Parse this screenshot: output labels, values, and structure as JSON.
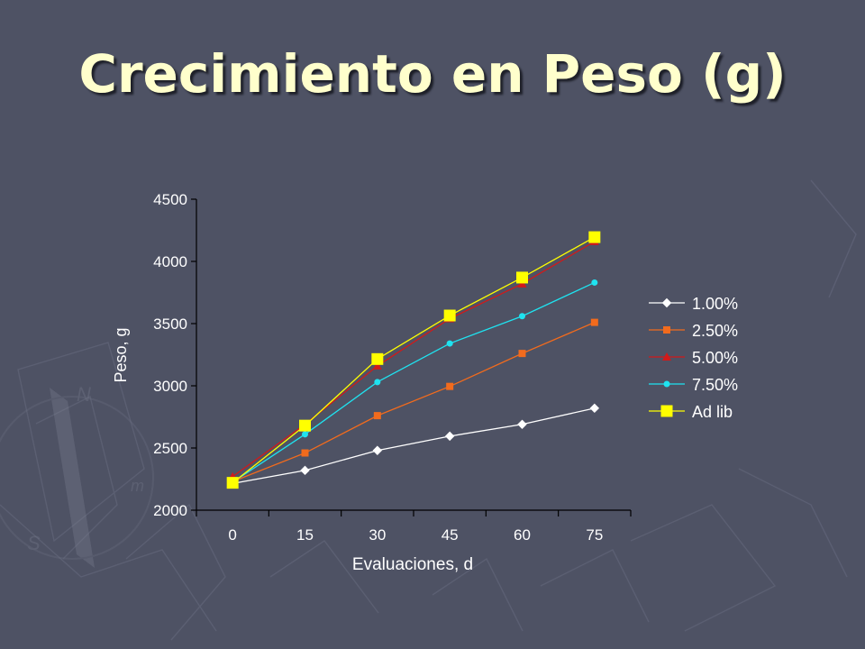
{
  "slide": {
    "title": "Crecimiento en Peso (g)",
    "background": "#4e5264",
    "title_color": "#ffffcc"
  },
  "chart_data": {
    "type": "line",
    "title": "",
    "xlabel": "Evaluaciones, d",
    "ylabel": "Peso, g",
    "x": [
      0,
      15,
      30,
      45,
      60,
      75
    ],
    "ylim": [
      2000,
      4500
    ],
    "yticks": [
      2000,
      2500,
      3000,
      3500,
      4000,
      4500
    ],
    "grid": false,
    "legend_position": "right",
    "series": [
      {
        "name": "1.00%",
        "color": "#ffffff",
        "marker": "diamond",
        "values": [
          2215,
          2320,
          2480,
          2595,
          2690,
          2820
        ]
      },
      {
        "name": "2.50%",
        "color": "#f26b1d",
        "marker": "square",
        "values": [
          2230,
          2460,
          2760,
          2995,
          3260,
          3510
        ]
      },
      {
        "name": "5.00%",
        "color": "#d11a1a",
        "marker": "triangle",
        "values": [
          2270,
          2690,
          3160,
          3540,
          3820,
          4160
        ]
      },
      {
        "name": "7.50%",
        "color": "#1fe3f0",
        "marker": "circle",
        "values": [
          2225,
          2610,
          3030,
          3340,
          3560,
          3830
        ]
      },
      {
        "name": "Ad lib",
        "color": "#ffff00",
        "marker": "square-large",
        "values": [
          2220,
          2680,
          3215,
          3565,
          3870,
          4195
        ]
      }
    ]
  }
}
